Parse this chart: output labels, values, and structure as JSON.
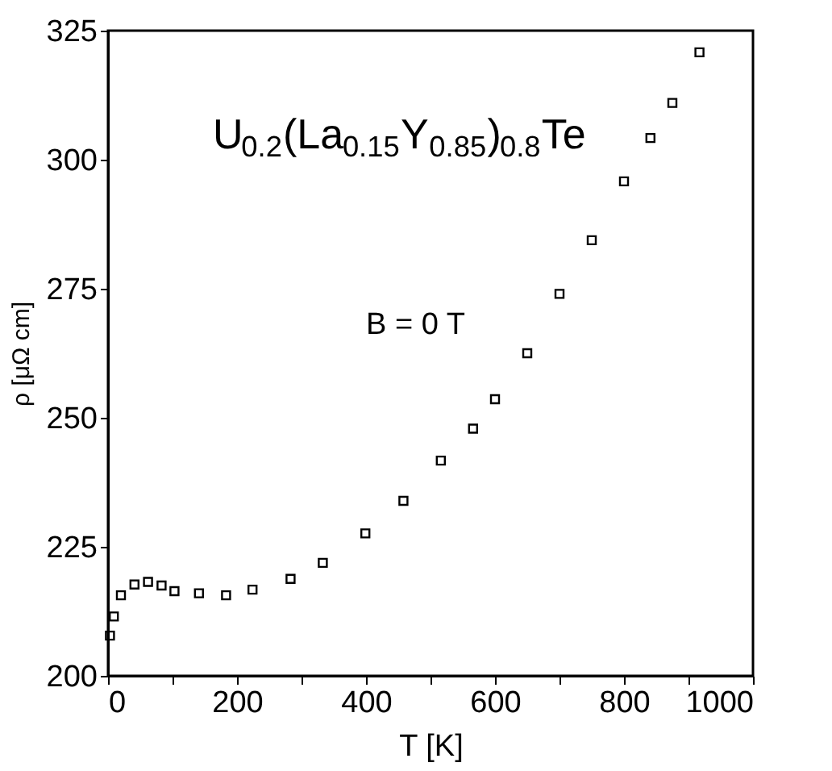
{
  "chart_data": {
    "type": "scatter",
    "xlabel": "T [K]",
    "ylabel": "ρ [μΩ cm]",
    "annotations": [
      "U$_{0.2}$(La$_{0.15}$Y$_{0.85}$)$_{0.8}$Te",
      "B = 0 T"
    ],
    "x": [
      3,
      9,
      20,
      41,
      62,
      83,
      103,
      141,
      183,
      224,
      283,
      333,
      399,
      458,
      516,
      566,
      600,
      650,
      700,
      750,
      800,
      841,
      875,
      917
    ],
    "series": [
      {
        "color": "#000000",
        "values": [
          207.8,
          211.5,
          215.6,
          217.7,
          218.2,
          217.5,
          216.4,
          216,
          215.6,
          216.7,
          218.8,
          221.9,
          227.6,
          233.9,
          241.7,
          247.9,
          253.6,
          262.5,
          274,
          284.4,
          295.8,
          304.2,
          311,
          320.8
        ]
      }
    ],
    "marker": "square",
    "grid": false,
    "xlim": [
      0,
      1000
    ],
    "ylim": [
      200,
      325
    ],
    "xticks": [
      0,
      {
        "value": 100,
        "label": null
      },
      200,
      {
        "value": 300,
        "label": null
      },
      400,
      {
        "value": 500,
        "label": null
      },
      600,
      {
        "value": 700,
        "label": null
      },
      800,
      {
        "value": 900,
        "label": null
      },
      1000
    ],
    "yticks": [
      200,
      225,
      250,
      275,
      300,
      325
    ]
  }
}
